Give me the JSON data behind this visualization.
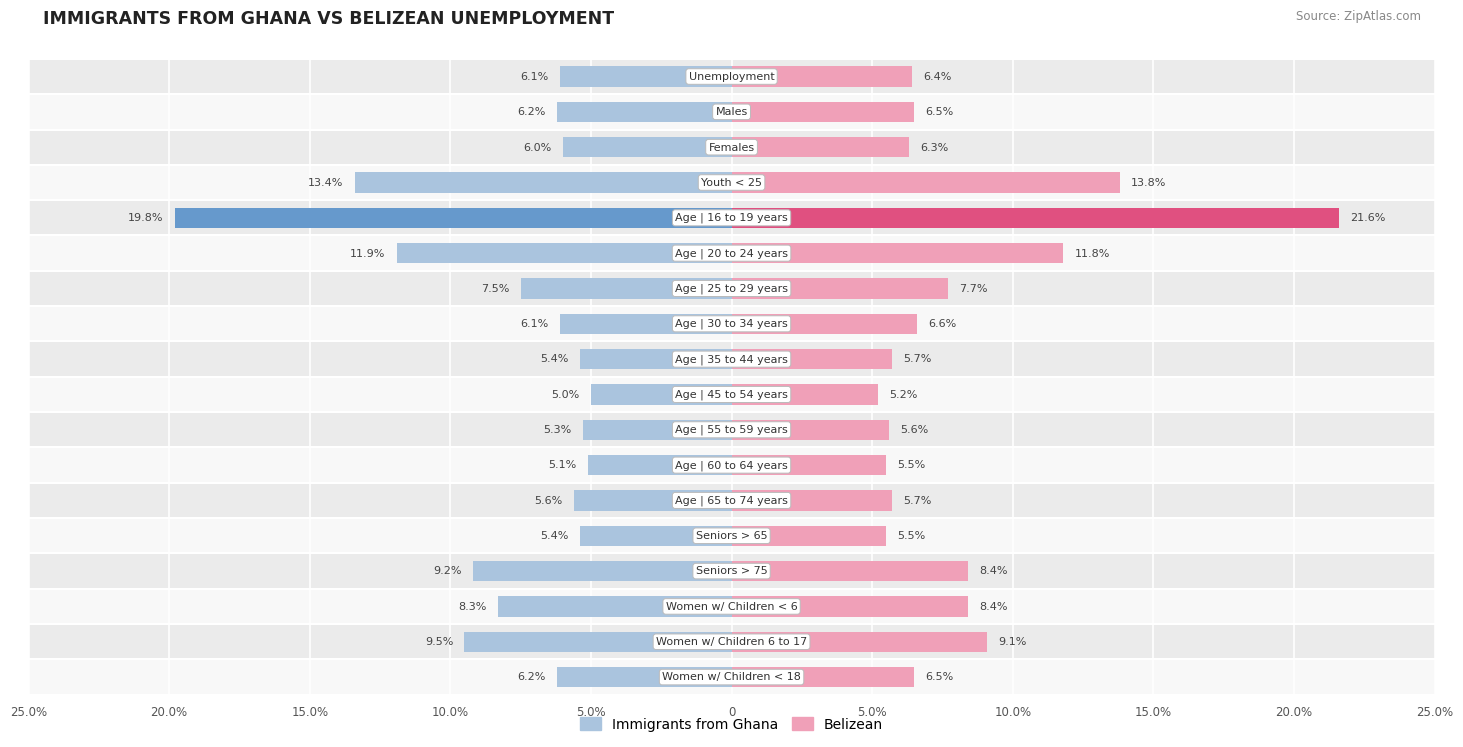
{
  "title": "IMMIGRANTS FROM GHANA VS BELIZEAN UNEMPLOYMENT",
  "source": "Source: ZipAtlas.com",
  "categories": [
    "Unemployment",
    "Males",
    "Females",
    "Youth < 25",
    "Age | 16 to 19 years",
    "Age | 20 to 24 years",
    "Age | 25 to 29 years",
    "Age | 30 to 34 years",
    "Age | 35 to 44 years",
    "Age | 45 to 54 years",
    "Age | 55 to 59 years",
    "Age | 60 to 64 years",
    "Age | 65 to 74 years",
    "Seniors > 65",
    "Seniors > 75",
    "Women w/ Children < 6",
    "Women w/ Children 6 to 17",
    "Women w/ Children < 18"
  ],
  "ghana_values": [
    6.1,
    6.2,
    6.0,
    13.4,
    19.8,
    11.9,
    7.5,
    6.1,
    5.4,
    5.0,
    5.3,
    5.1,
    5.6,
    5.4,
    9.2,
    8.3,
    9.5,
    6.2
  ],
  "belizean_values": [
    6.4,
    6.5,
    6.3,
    13.8,
    21.6,
    11.8,
    7.7,
    6.6,
    5.7,
    5.2,
    5.6,
    5.5,
    5.7,
    5.5,
    8.4,
    8.4,
    9.1,
    6.5
  ],
  "ghana_color": "#aac4de",
  "belizean_color": "#f0a0b8",
  "ghana_color_highlight": "#6699cc",
  "belizean_color_highlight": "#e05080",
  "bar_height": 0.58,
  "xlim": 25.0,
  "bg_row_light": "#ebebeb",
  "bg_row_white": "#f8f8f8",
  "legend_ghana": "Immigrants from Ghana",
  "legend_belizean": "Belizean",
  "tick_positions": [
    -25,
    -20,
    -15,
    -10,
    -5,
    0,
    5,
    10,
    15,
    20,
    25
  ],
  "tick_labels": [
    "25.0%",
    "20.0%",
    "15.0%",
    "10.0%",
    "5.0%",
    "0",
    "5.0%",
    "10.0%",
    "15.0%",
    "20.0%",
    "25.0%"
  ]
}
